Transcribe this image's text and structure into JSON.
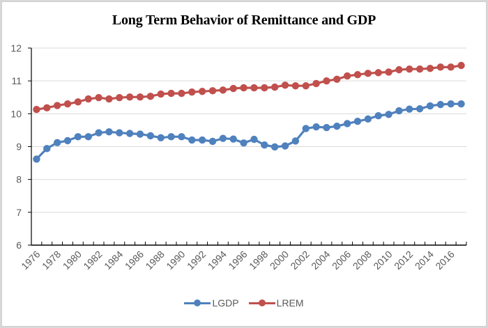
{
  "chart_data": {
    "type": "line",
    "title": "Long Term Behavior of Remittance and GDP",
    "xlabel": "",
    "ylabel": "",
    "ylim": [
      6,
      12
    ],
    "yticks": [
      6,
      7,
      8,
      9,
      10,
      11,
      12
    ],
    "grid": true,
    "legend_position": "bottom",
    "x": [
      1976,
      1977,
      1978,
      1979,
      1980,
      1981,
      1982,
      1983,
      1984,
      1985,
      1986,
      1987,
      1988,
      1989,
      1990,
      1991,
      1992,
      1993,
      1994,
      1995,
      1996,
      1997,
      1998,
      1999,
      2000,
      2001,
      2002,
      2003,
      2004,
      2005,
      2006,
      2007,
      2008,
      2009,
      2010,
      2011,
      2012,
      2013,
      2014,
      2015,
      2016,
      2017
    ],
    "xtick_labels": [
      "1976",
      "1978",
      "1980",
      "1982",
      "1984",
      "1986",
      "1988",
      "1990",
      "1992",
      "1994",
      "1996",
      "1998",
      "2000",
      "2002",
      "2004",
      "2006",
      "2008",
      "2010",
      "2012",
      "2014",
      "2016"
    ],
    "series": [
      {
        "name": "LGDP",
        "color": "#4f81bd",
        "values": [
          8.62,
          8.94,
          9.12,
          9.18,
          9.3,
          9.3,
          9.42,
          9.45,
          9.42,
          9.4,
          9.38,
          9.33,
          9.27,
          9.3,
          9.3,
          9.2,
          9.2,
          9.16,
          9.25,
          9.23,
          9.11,
          9.22,
          9.05,
          8.99,
          9.02,
          9.17,
          9.55,
          9.6,
          9.58,
          9.62,
          9.7,
          9.77,
          9.84,
          9.94,
          9.98,
          10.09,
          10.14,
          10.15,
          10.24,
          10.28,
          10.3,
          10.3
        ]
      },
      {
        "name": "LREM",
        "color": "#c0504d",
        "values": [
          10.13,
          10.18,
          10.25,
          10.3,
          10.36,
          10.45,
          10.49,
          10.45,
          10.49,
          10.51,
          10.51,
          10.53,
          10.6,
          10.62,
          10.62,
          10.66,
          10.68,
          10.7,
          10.72,
          10.77,
          10.79,
          10.79,
          10.79,
          10.81,
          10.87,
          10.85,
          10.85,
          10.92,
          11.0,
          11.05,
          11.15,
          11.19,
          11.23,
          11.25,
          11.27,
          11.34,
          11.36,
          11.36,
          11.38,
          11.42,
          11.42,
          11.47
        ]
      }
    ]
  }
}
